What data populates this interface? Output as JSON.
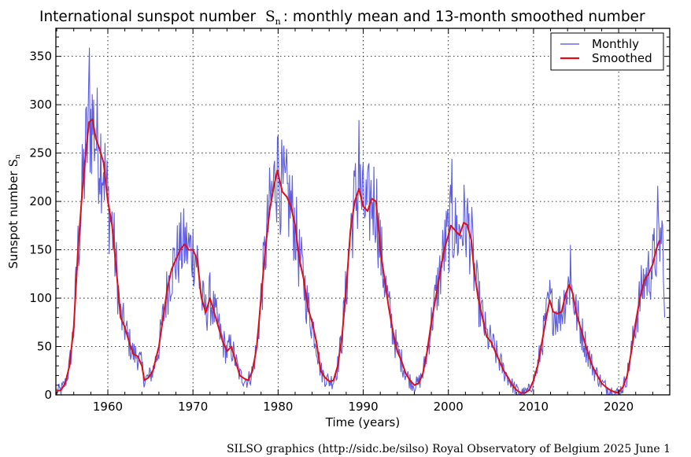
{
  "chart_data": {
    "type": "line",
    "title": "International sunspot number",
    "title_symbol": "S",
    "title_symbol_sub": "n",
    "title_suffix": ": monthly mean and 13-month smoothed number",
    "xlabel": "Time (years)",
    "ylabel": "Sunspot number",
    "ylabel_symbol": "S",
    "ylabel_symbol_sub": "n",
    "xlim": [
      1953.9,
      2026.0
    ],
    "ylim": [
      0,
      379
    ],
    "xticks": [
      1960,
      1970,
      1980,
      1990,
      2000,
      2010,
      2020
    ],
    "xtick_labels": [
      "1960",
      "1970",
      "1980",
      "1990",
      "2000",
      "2010",
      "2020"
    ],
    "yticks": [
      0,
      50,
      100,
      150,
      200,
      250,
      300,
      350
    ],
    "ytick_labels": [
      "0",
      "50",
      "100",
      "150",
      "200",
      "250",
      "300",
      "350"
    ],
    "grid": true,
    "legend_position": "top-right",
    "series": [
      {
        "name": "Monthly",
        "color": "#4b4bdf",
        "note": "monthly mean, approximated around smoothed curve",
        "peaks": [
          {
            "x": 1957.8,
            "y": 359
          },
          {
            "x": 1979.9,
            "y": 266
          },
          {
            "x": 1989.5,
            "y": 284
          },
          {
            "x": 2000.4,
            "y": 244
          },
          {
            "x": 2014.3,
            "y": 155
          },
          {
            "x": 2024.6,
            "y": 216
          }
        ],
        "last": {
          "x": 2025.4,
          "y": 80
        }
      },
      {
        "name": "Smoothed",
        "color": "#dd0e1a",
        "points": [
          [
            1954.0,
            4
          ],
          [
            1954.5,
            5
          ],
          [
            1955.0,
            12
          ],
          [
            1955.5,
            30
          ],
          [
            1956.0,
            70
          ],
          [
            1956.5,
            150
          ],
          [
            1957.0,
            210
          ],
          [
            1957.5,
            258
          ],
          [
            1957.8,
            282
          ],
          [
            1958.2,
            285
          ],
          [
            1958.6,
            265
          ],
          [
            1959.0,
            255
          ],
          [
            1959.5,
            240
          ],
          [
            1960.0,
            200
          ],
          [
            1960.5,
            175
          ],
          [
            1961.0,
            130
          ],
          [
            1961.5,
            80
          ],
          [
            1962.0,
            70
          ],
          [
            1962.5,
            55
          ],
          [
            1963.0,
            42
          ],
          [
            1963.5,
            40
          ],
          [
            1964.0,
            30
          ],
          [
            1964.3,
            15
          ],
          [
            1964.8,
            18
          ],
          [
            1965.3,
            25
          ],
          [
            1966.0,
            50
          ],
          [
            1966.5,
            80
          ],
          [
            1967.0,
            110
          ],
          [
            1967.5,
            130
          ],
          [
            1968.0,
            140
          ],
          [
            1968.5,
            150
          ],
          [
            1969.0,
            156
          ],
          [
            1969.5,
            150
          ],
          [
            1970.0,
            150
          ],
          [
            1970.5,
            140
          ],
          [
            1971.0,
            100
          ],
          [
            1971.5,
            85
          ],
          [
            1972.0,
            100
          ],
          [
            1972.5,
            85
          ],
          [
            1973.0,
            70
          ],
          [
            1973.5,
            55
          ],
          [
            1974.0,
            45
          ],
          [
            1974.5,
            50
          ],
          [
            1975.0,
            35
          ],
          [
            1975.5,
            20
          ],
          [
            1976.0,
            17
          ],
          [
            1976.5,
            15
          ],
          [
            1977.0,
            25
          ],
          [
            1977.5,
            50
          ],
          [
            1978.0,
            100
          ],
          [
            1978.5,
            150
          ],
          [
            1979.0,
            190
          ],
          [
            1979.5,
            215
          ],
          [
            1979.9,
            232
          ],
          [
            1980.5,
            210
          ],
          [
            1981.0,
            205
          ],
          [
            1981.5,
            195
          ],
          [
            1982.0,
            175
          ],
          [
            1982.5,
            140
          ],
          [
            1983.0,
            120
          ],
          [
            1983.5,
            90
          ],
          [
            1984.0,
            75
          ],
          [
            1984.5,
            55
          ],
          [
            1985.0,
            25
          ],
          [
            1985.5,
            18
          ],
          [
            1986.0,
            14
          ],
          [
            1986.5,
            15
          ],
          [
            1987.0,
            30
          ],
          [
            1987.5,
            60
          ],
          [
            1988.0,
            110
          ],
          [
            1988.5,
            170
          ],
          [
            1989.0,
            200
          ],
          [
            1989.5,
            213
          ],
          [
            1990.0,
            195
          ],
          [
            1990.5,
            190
          ],
          [
            1991.0,
            203
          ],
          [
            1991.5,
            200
          ],
          [
            1992.0,
            150
          ],
          [
            1992.5,
            120
          ],
          [
            1993.0,
            90
          ],
          [
            1993.5,
            65
          ],
          [
            1994.0,
            45
          ],
          [
            1994.5,
            35
          ],
          [
            1995.0,
            22
          ],
          [
            1995.5,
            15
          ],
          [
            1996.0,
            10
          ],
          [
            1996.5,
            12
          ],
          [
            1997.0,
            22
          ],
          [
            1997.5,
            45
          ],
          [
            1998.0,
            75
          ],
          [
            1998.5,
            100
          ],
          [
            1999.0,
            125
          ],
          [
            1999.5,
            150
          ],
          [
            2000.0,
            165
          ],
          [
            2000.3,
            175
          ],
          [
            2000.8,
            170
          ],
          [
            2001.3,
            165
          ],
          [
            2001.8,
            178
          ],
          [
            2002.2,
            176
          ],
          [
            2002.7,
            160
          ],
          [
            2003.0,
            130
          ],
          [
            2003.5,
            100
          ],
          [
            2004.0,
            80
          ],
          [
            2004.5,
            60
          ],
          [
            2005.0,
            55
          ],
          [
            2005.5,
            45
          ],
          [
            2006.0,
            35
          ],
          [
            2006.5,
            25
          ],
          [
            2007.0,
            18
          ],
          [
            2007.5,
            10
          ],
          [
            2008.0,
            5
          ],
          [
            2008.5,
            2
          ],
          [
            2009.0,
            2
          ],
          [
            2009.5,
            5
          ],
          [
            2010.0,
            15
          ],
          [
            2010.5,
            30
          ],
          [
            2011.0,
            55
          ],
          [
            2011.5,
            80
          ],
          [
            2011.9,
            98
          ],
          [
            2012.3,
            86
          ],
          [
            2012.8,
            84
          ],
          [
            2013.3,
            86
          ],
          [
            2013.8,
            105
          ],
          [
            2014.2,
            114
          ],
          [
            2014.6,
            105
          ],
          [
            2015.0,
            85
          ],
          [
            2015.5,
            70
          ],
          [
            2016.0,
            55
          ],
          [
            2016.5,
            40
          ],
          [
            2017.0,
            28
          ],
          [
            2017.5,
            20
          ],
          [
            2018.0,
            12
          ],
          [
            2018.5,
            8
          ],
          [
            2019.0,
            5
          ],
          [
            2019.5,
            3
          ],
          [
            2019.9,
            2
          ],
          [
            2020.5,
            8
          ],
          [
            2021.0,
            20
          ],
          [
            2021.5,
            45
          ],
          [
            2022.0,
            75
          ],
          [
            2022.5,
            100
          ],
          [
            2023.0,
            118
          ],
          [
            2023.5,
            125
          ],
          [
            2024.0,
            135
          ],
          [
            2024.4,
            150
          ],
          [
            2024.8,
            160
          ]
        ]
      }
    ],
    "legend": [
      "Monthly",
      "Smoothed"
    ]
  },
  "credit": "SILSO graphics (http://sidc.be/silso)  Royal Observatory of Belgium  2025 June 1"
}
